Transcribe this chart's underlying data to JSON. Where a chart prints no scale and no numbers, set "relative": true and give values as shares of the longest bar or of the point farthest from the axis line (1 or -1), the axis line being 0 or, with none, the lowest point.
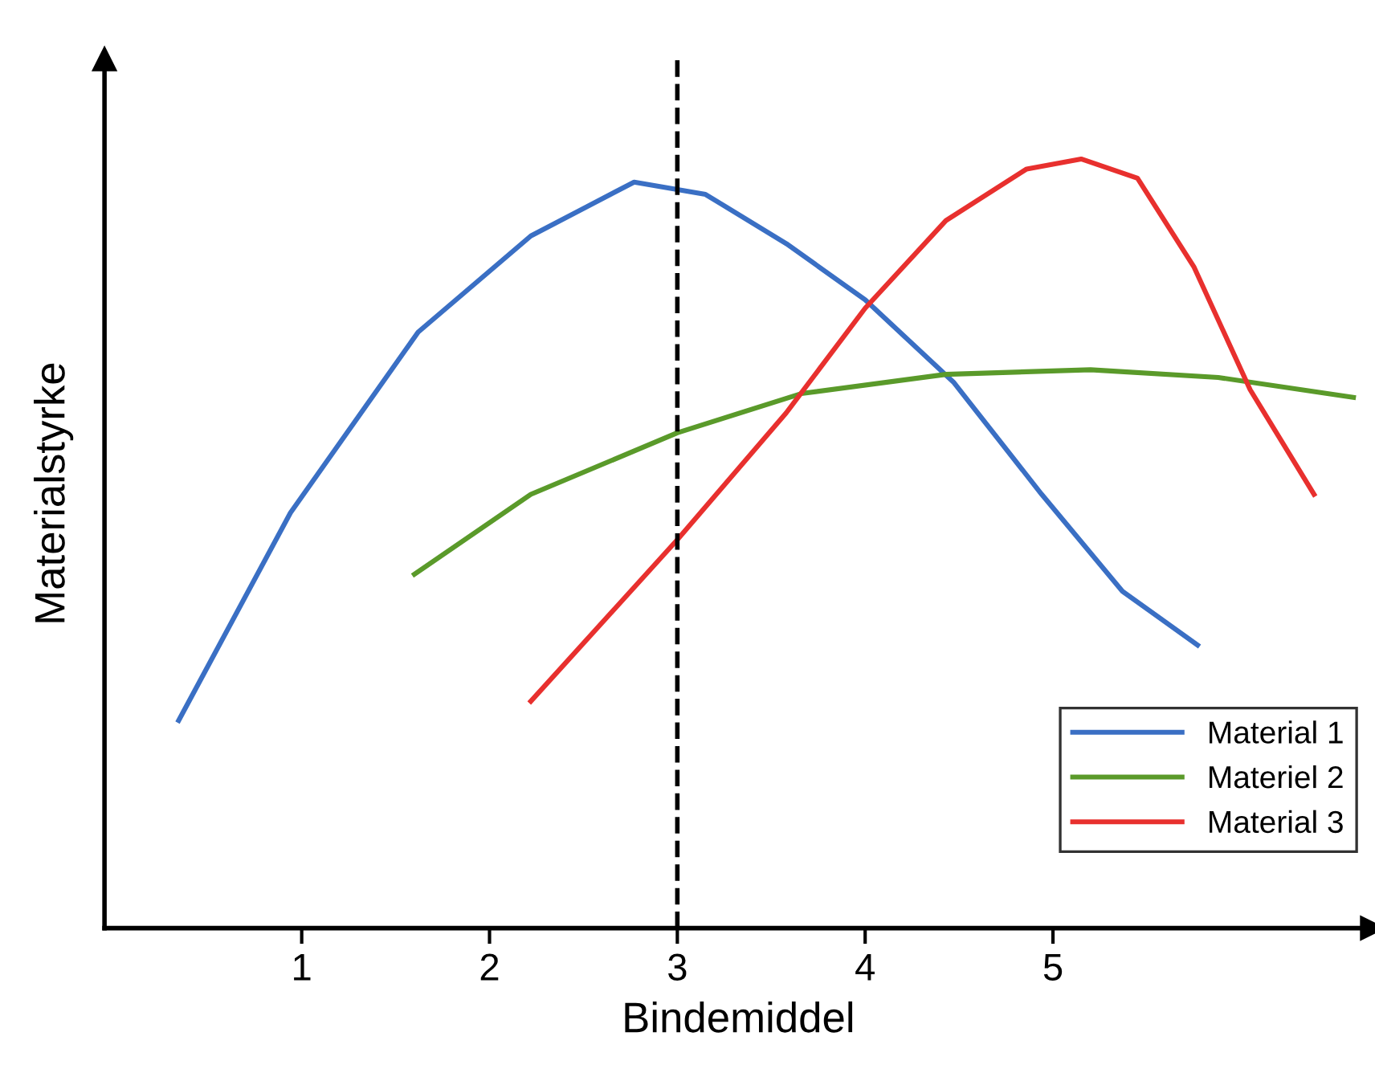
{
  "chart_data": {
    "type": "line",
    "relative": true,
    "xlabel": "Bindemiddel",
    "ylabel": "Materialstyrke",
    "xlim": [
      -0.05,
      6.7
    ],
    "xticks": [
      1,
      2,
      3,
      4,
      5
    ],
    "grid": false,
    "legend": "bottom right",
    "marker": "none",
    "line_style": "solid",
    "series": [
      {
        "name": "Material 1",
        "color": "#3a6fc4",
        "x": [
          0.345,
          0.94,
          1.62,
          2.22,
          2.77,
          3.15,
          3.58,
          4.0,
          4.47,
          4.94,
          5.37,
          5.77
        ],
        "values": [
          0.27,
          0.54,
          0.775,
          0.9,
          0.97,
          0.954,
          0.89,
          0.817,
          0.71,
          0.564,
          0.438,
          0.368
        ]
      },
      {
        "name": "Materiel 2",
        "color": "#5a9a2a",
        "x": [
          1.6,
          2.22,
          3.0,
          3.66,
          4.43,
          5.2,
          5.88,
          6.6
        ],
        "values": [
          0.46,
          0.564,
          0.644,
          0.695,
          0.72,
          0.726,
          0.716,
          0.69
        ]
      },
      {
        "name": "Material 3",
        "color": "#e8302e",
        "x": [
          2.22,
          3.0,
          3.58,
          4.0,
          4.43,
          4.86,
          5.15,
          5.45,
          5.75,
          6.05,
          6.39
        ],
        "values": [
          0.295,
          0.505,
          0.67,
          0.806,
          0.92,
          0.987,
          1.0,
          0.975,
          0.86,
          0.7,
          0.564
        ]
      }
    ],
    "ref_lines": [
      {
        "axis": "x",
        "value": 3,
        "color": "#000000",
        "line_style": "dashed"
      }
    ]
  }
}
